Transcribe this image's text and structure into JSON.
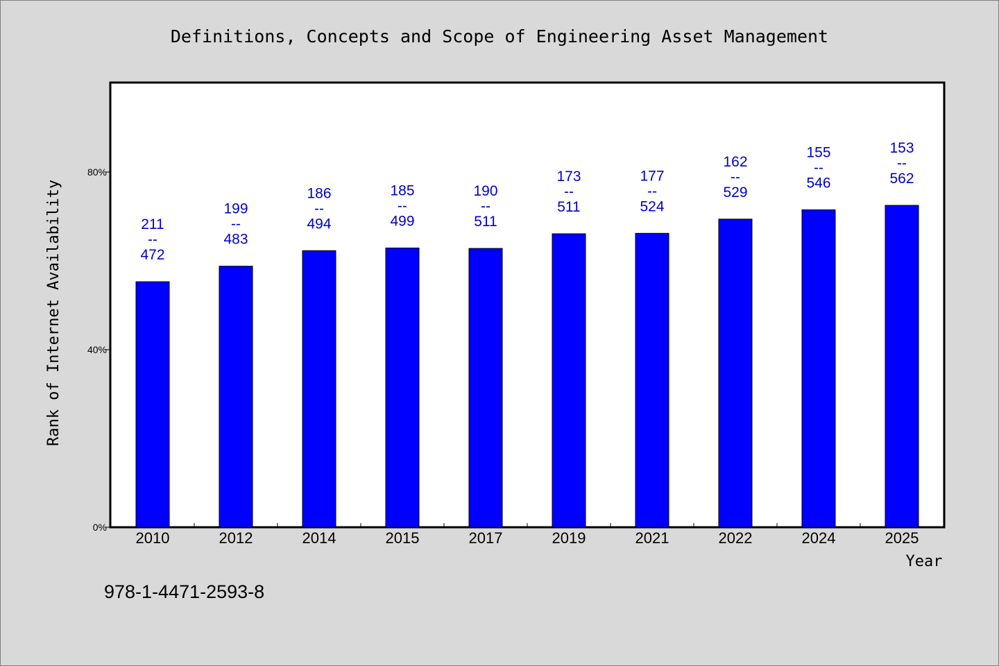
{
  "chart_data": {
    "type": "bar",
    "title": "Definitions, Concepts and Scope of Engineering Asset Management",
    "xlabel": "Year",
    "ylabel": "Rank of Internet Availability",
    "categories": [
      "2010",
      "2012",
      "2014",
      "2015",
      "2017",
      "2019",
      "2021",
      "2022",
      "2024",
      "2025"
    ],
    "values": [
      55.3,
      58.8,
      62.3,
      62.9,
      62.8,
      66.1,
      66.2,
      69.4,
      71.5,
      72.5
    ],
    "ranks": [
      "211",
      "199",
      "186",
      "185",
      "190",
      "173",
      "177",
      "162",
      "155",
      "153"
    ],
    "totals": [
      "472",
      "483",
      "494",
      "499",
      "511",
      "511",
      "524",
      "529",
      "546",
      "562"
    ],
    "label_separator": "--",
    "ylim": [
      0,
      100
    ],
    "yticks": [
      0,
      40,
      80
    ],
    "ytick_labels": [
      "0%",
      "40%",
      "80%"
    ],
    "bar_color": "#0000ff",
    "label_color": "#0000cc",
    "grid": false,
    "legend": "none"
  },
  "footnote": "978-1-4471-2593-8"
}
